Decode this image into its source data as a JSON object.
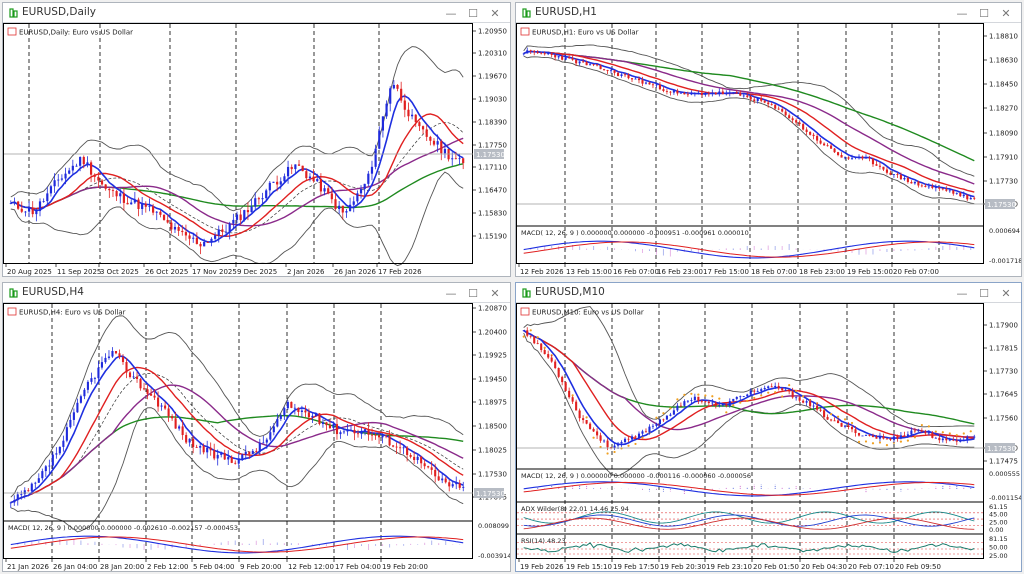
{
  "charts": [
    {
      "id": "daily",
      "title": "EURUSD,Daily",
      "legend": "EURUSD,Daily:  Euro vs US Dollar",
      "price_labels": [
        "1.20950",
        "1.20310",
        "1.19670",
        "1.19030",
        "1.18390",
        "1.17750",
        "1.17110",
        "1.16470",
        "1.15830",
        "1.15190"
      ],
      "current_price": "1.17530",
      "time_labels": [
        "20 Aug 2025",
        "11 Sep 2025",
        "3 Oct 2025",
        "26 Oct 2025",
        "17 Nov 2025",
        "9 Dec 2025",
        "2 Jan 2026",
        "26 Jan 2026",
        "17 Feb 2026"
      ],
      "indicators": []
    },
    {
      "id": "h1",
      "title": "EURUSD,H1",
      "legend": "EURUSD,H1:  Euro vs US Dollar",
      "price_labels": [
        "1.18810",
        "1.18630",
        "1.18450",
        "1.18270",
        "1.18090",
        "1.17910",
        "1.17730",
        "1.17530"
      ],
      "current_price": "1.17530",
      "time_labels": [
        "12 Feb 2026",
        "13 Feb 15:00",
        "16 Feb 07:00",
        "16 Feb 23:00",
        "17 Feb 15:00",
        "18 Feb 07:00",
        "18 Feb 23:00",
        "19 Feb 15:00",
        "20 Feb 07:00"
      ],
      "indicators": [
        {
          "label": "MACD( 12, 26, 9 ) 0.000000 0.000000 -0.000951 -0.000961 0.000010",
          "scale": [
            "0.000694",
            "-0.001718"
          ]
        }
      ]
    },
    {
      "id": "h4",
      "title": "EURUSD,H4",
      "legend": "EURUSD,H4:  Euro vs US Dollar",
      "price_labels": [
        "1.20870",
        "1.20400",
        "1.19925",
        "1.19450",
        "1.18975",
        "1.18500",
        "1.18025",
        "1.17530",
        "1.17075"
      ],
      "current_price": "1.17530",
      "time_labels": [
        "21 Jan 2026",
        "26 Jan 04:00",
        "28 Jan 20:00",
        "2 Feb 12:00",
        "5 Feb 04:00",
        "9 Feb 20:00",
        "12 Feb 12:00",
        "17 Feb 04:00",
        "19 Feb 20:00"
      ],
      "indicators": [
        {
          "label": "MACD( 12, 26, 9 ) 0.000000 0.000000 -0.002610 -0.002157 -0.000453",
          "scale": [
            "0.008099",
            "-0.003914"
          ]
        }
      ]
    },
    {
      "id": "m10",
      "title": "EURUSD,M10",
      "legend": "EURUSD,M10:  Euro vs US Dollar",
      "price_labels": [
        "1.17900",
        "1.17815",
        "1.17730",
        "1.17645",
        "1.17560",
        "1.17530",
        "1.17475"
      ],
      "current_price": "1.17530",
      "time_labels": [
        "19 Feb 2026",
        "19 Feb 15:10",
        "19 Feb 17:50",
        "19 Feb 20:30",
        "19 Feb 23:10",
        "20 Feb 01:50",
        "20 Feb 04:30",
        "20 Feb 07:10",
        "20 Feb 09:50"
      ],
      "indicators": [
        {
          "label": "MACD( 12, 26, 9 ) 0.000000 0.000000 -0.000116 -0.000060 -0.000056",
          "scale": [
            "0.000555",
            "-0.001154"
          ]
        },
        {
          "label": "ADX Wilder(8) 22.01 14.46 25.94",
          "scale": [
            "61.15",
            "45.00",
            "25.00",
            "0.00"
          ]
        },
        {
          "label": "RSI(14) 48.23",
          "scale": [
            "81.15",
            "50.00",
            "25.00"
          ]
        }
      ]
    }
  ],
  "colors": {
    "bull": "#1f2bdc",
    "bear": "#e02020",
    "ma_fast": "#1e2fe0",
    "ma_red": "#e02020",
    "ma_purple": "#8a2a8a",
    "ma_green": "#1f8a1f",
    "bands": "#555555",
    "price_tag": "#b7bcc4",
    "sar": "#f0a020"
  }
}
